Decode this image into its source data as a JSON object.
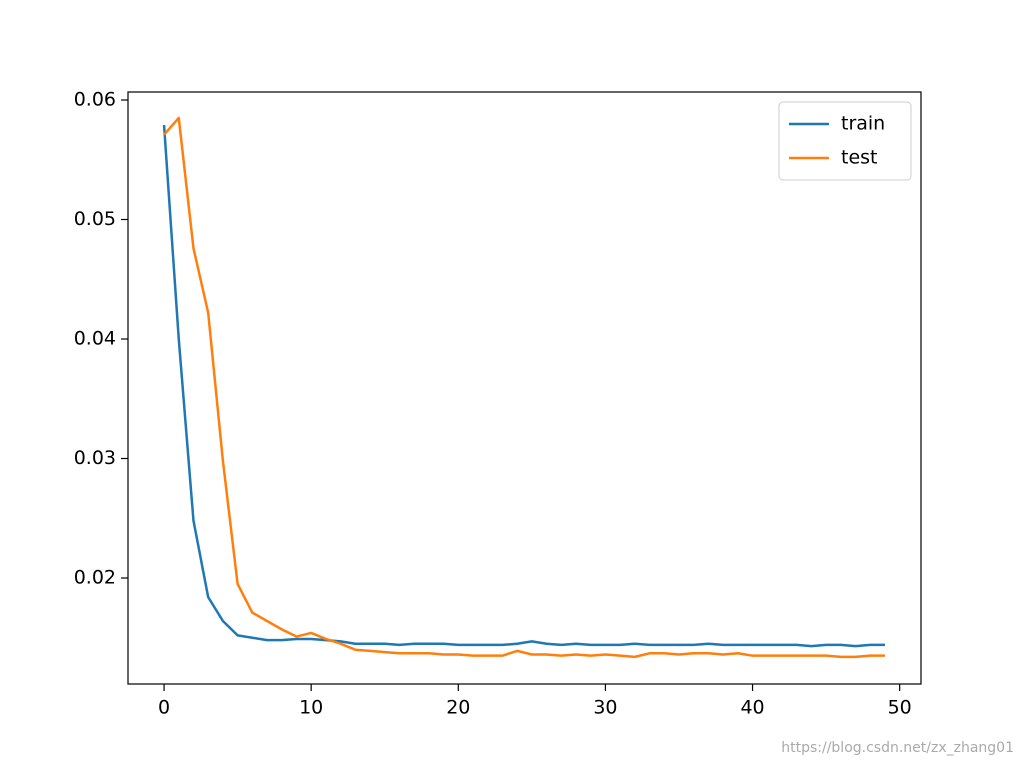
{
  "chart_data": {
    "type": "line",
    "x": [
      0,
      1,
      2,
      3,
      4,
      5,
      6,
      7,
      8,
      9,
      10,
      11,
      12,
      13,
      14,
      15,
      16,
      17,
      18,
      19,
      20,
      21,
      22,
      23,
      24,
      25,
      26,
      27,
      28,
      29,
      30,
      31,
      32,
      33,
      34,
      35,
      36,
      37,
      38,
      39,
      40,
      41,
      42,
      43,
      44,
      45,
      46,
      47,
      48,
      49
    ],
    "series": [
      {
        "name": "train",
        "color": "#1f77b4",
        "values": [
          0.0579,
          0.04,
          0.0248,
          0.0184,
          0.0164,
          0.0152,
          0.015,
          0.0148,
          0.0148,
          0.0149,
          0.0149,
          0.0148,
          0.0147,
          0.0145,
          0.0145,
          0.0145,
          0.0144,
          0.0145,
          0.0145,
          0.0145,
          0.0144,
          0.0144,
          0.0144,
          0.0144,
          0.0145,
          0.0147,
          0.0145,
          0.0144,
          0.0145,
          0.0144,
          0.0144,
          0.0144,
          0.0145,
          0.0144,
          0.0144,
          0.0144,
          0.0144,
          0.0145,
          0.0144,
          0.0144,
          0.0144,
          0.0144,
          0.0144,
          0.0144,
          0.0143,
          0.0144,
          0.0144,
          0.0143,
          0.0144,
          0.0144
        ]
      },
      {
        "name": "test",
        "color": "#ff7f0e",
        "values": [
          0.0571,
          0.0585,
          0.0476,
          0.0422,
          0.0298,
          0.0195,
          0.0171,
          0.0164,
          0.0157,
          0.0151,
          0.0154,
          0.0149,
          0.0145,
          0.014,
          0.0139,
          0.0138,
          0.0137,
          0.0137,
          0.0137,
          0.0136,
          0.0136,
          0.0135,
          0.0135,
          0.0135,
          0.0139,
          0.0136,
          0.0136,
          0.0135,
          0.0136,
          0.0135,
          0.0136,
          0.0135,
          0.0134,
          0.0137,
          0.0137,
          0.0136,
          0.0137,
          0.0137,
          0.0136,
          0.0137,
          0.0135,
          0.0135,
          0.0135,
          0.0135,
          0.0135,
          0.0135,
          0.0134,
          0.0134,
          0.0135,
          0.0135
        ]
      }
    ],
    "xlim": [
      -2.45,
      51.45
    ],
    "xticks": [
      0,
      10,
      20,
      30,
      40,
      50
    ],
    "ylim": [
      0.01113,
      0.06067
    ],
    "yticks": [
      0.02,
      0.03,
      0.04,
      0.05,
      0.06
    ],
    "legend": "upper right",
    "grid": false,
    "watermark": "https://blog.csdn.net/zx_zhang01"
  }
}
